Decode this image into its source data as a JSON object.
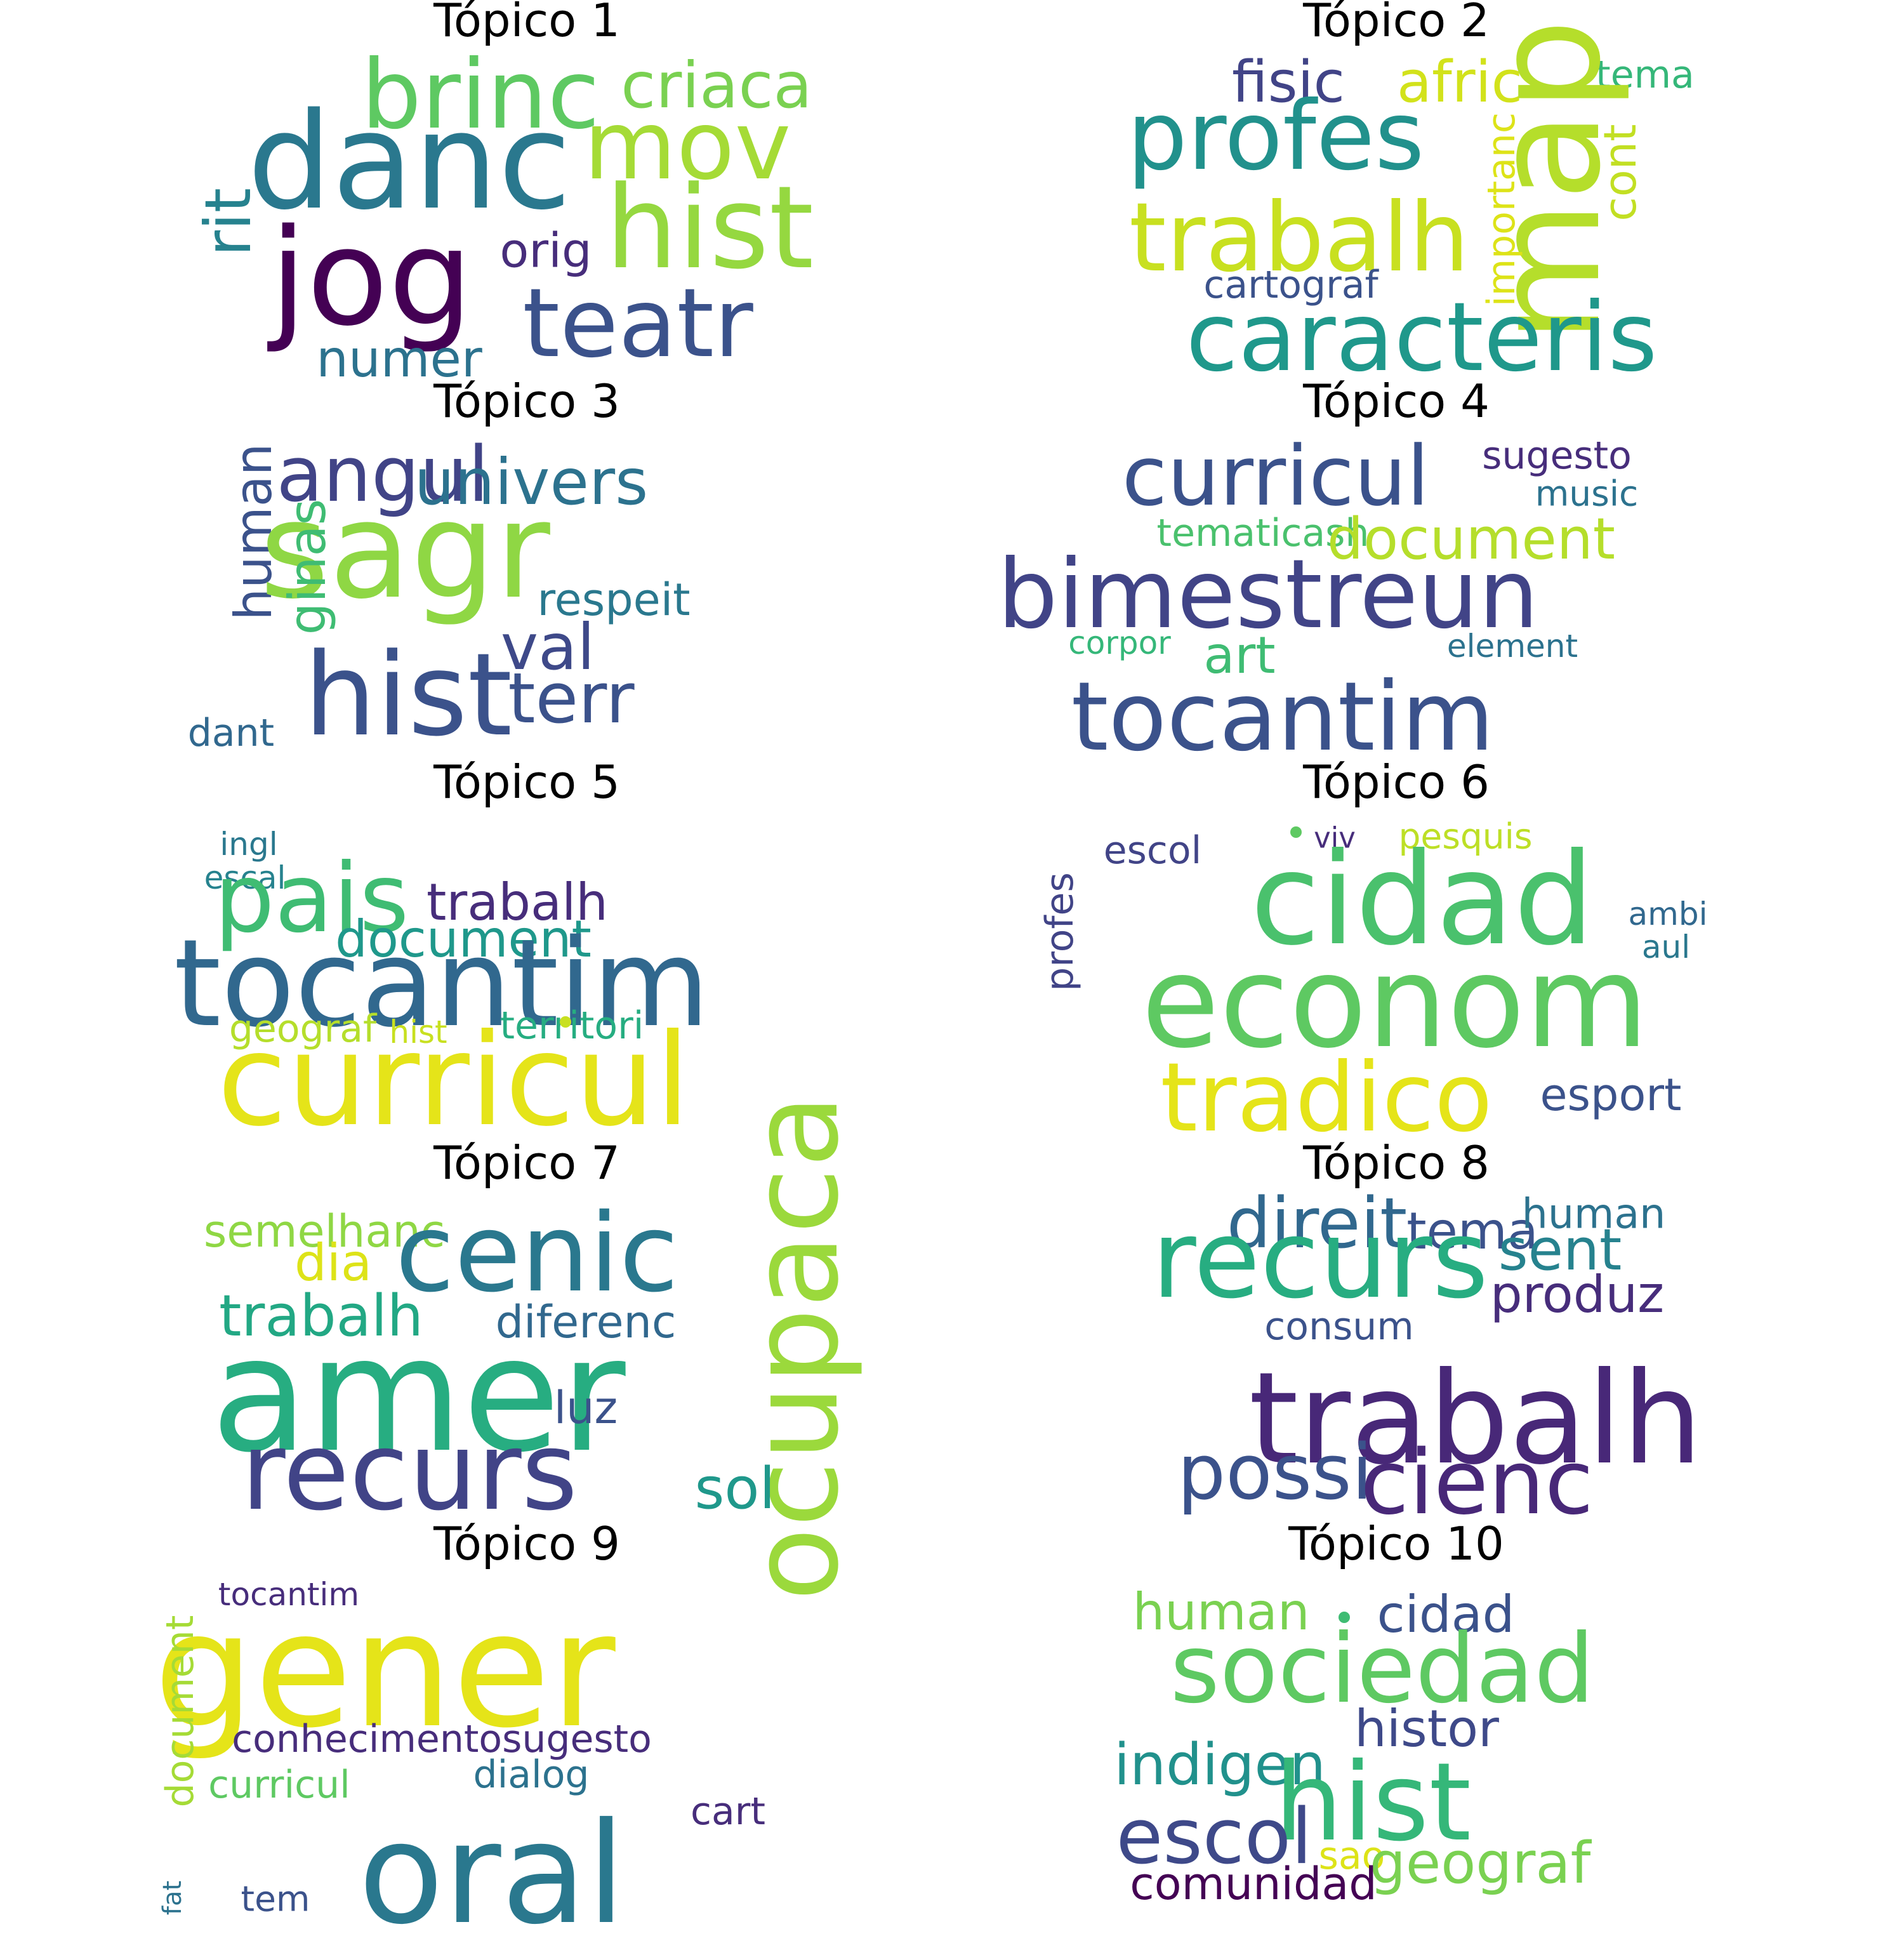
{
  "topics": [
    {
      "title": "Tópico 1",
      "words": [
        {
          "text": "brinc",
          "color": "#5ec962"
        },
        {
          "text": "criaca",
          "color": "#7ad151"
        },
        {
          "text": "danc",
          "color": "#2a788e"
        },
        {
          "text": "mov",
          "color": "#a5db36"
        },
        {
          "text": "rit",
          "color": "#26828e"
        },
        {
          "text": "hist",
          "color": "#95d840"
        },
        {
          "text": "jog",
          "color": "#440154"
        },
        {
          "text": "orig",
          "color": "#472d7b"
        },
        {
          "text": "teatr",
          "color": "#3b528b"
        },
        {
          "text": "numer",
          "color": "#2c728e"
        }
      ],
      "dots": []
    },
    {
      "title": "Tópico 2",
      "words": [
        {
          "text": "fisic",
          "color": "#414487"
        },
        {
          "text": "afric",
          "color": "#d2e21b"
        },
        {
          "text": "tema",
          "color": "#35b779"
        },
        {
          "text": "profes",
          "color": "#21918c"
        },
        {
          "text": "map",
          "color": "#b5de2b"
        },
        {
          "text": "importanc",
          "color": "#dde318"
        },
        {
          "text": "cont",
          "color": "#c2df23"
        },
        {
          "text": "trabalh",
          "color": "#c8e020"
        },
        {
          "text": "cartograf",
          "color": "#3b528b"
        },
        {
          "text": "caracteris",
          "color": "#1f988b"
        }
      ],
      "dots": []
    },
    {
      "title": "Tópico 3",
      "words": [
        {
          "text": "human",
          "color": "#3b528b"
        },
        {
          "text": "angul",
          "color": "#414487"
        },
        {
          "text": "univers",
          "color": "#2c728e"
        },
        {
          "text": "sagr",
          "color": "#8fd744"
        },
        {
          "text": "ginas",
          "color": "#3fbc73"
        },
        {
          "text": "respeit",
          "color": "#2a788e"
        },
        {
          "text": "val",
          "color": "#3e4989"
        },
        {
          "text": "hist",
          "color": "#3b528b"
        },
        {
          "text": "terr",
          "color": "#3b528b"
        },
        {
          "text": "dant",
          "color": "#31688e"
        }
      ],
      "dots": []
    },
    {
      "title": "Tópico 4",
      "words": [
        {
          "text": "curricul",
          "color": "#3b528b"
        },
        {
          "text": "sugesto",
          "color": "#472d7b"
        },
        {
          "text": "music",
          "color": "#2c728e"
        },
        {
          "text": "tematicash",
          "color": "#4ac16d"
        },
        {
          "text": "document",
          "color": "#b5de2b"
        },
        {
          "text": "bimestreun",
          "color": "#414487"
        },
        {
          "text": "art",
          "color": "#3fbc73"
        },
        {
          "text": "corpor",
          "color": "#35b779"
        },
        {
          "text": "element",
          "color": "#2c728e"
        },
        {
          "text": "tocantim",
          "color": "#3b528b"
        }
      ],
      "dots": []
    },
    {
      "title": "Tópico 5",
      "words": [
        {
          "text": "ingl",
          "color": "#2a788e"
        },
        {
          "text": "escal",
          "color": "#26828e"
        },
        {
          "text": "pais",
          "color": "#3fbc73"
        },
        {
          "text": "trabalh",
          "color": "#472d7b"
        },
        {
          "text": "document",
          "color": "#1f988b"
        },
        {
          "text": "tocantim",
          "color": "#31688e"
        },
        {
          "text": "geograf",
          "color": "#b5de2b"
        },
        {
          "text": "hist",
          "color": "#c8e020"
        },
        {
          "text": "territori",
          "color": "#26ad81"
        },
        {
          "text": "curricul",
          "color": "#e5e419"
        }
      ],
      "dots": [
        {
          "color": "#c8e020"
        }
      ]
    },
    {
      "title": "Tópico 6",
      "words": [
        {
          "text": "escol",
          "color": "#414487"
        },
        {
          "text": "viv",
          "color": "#472d7b"
        },
        {
          "text": "pesquis",
          "color": "#bddf26"
        },
        {
          "text": "profes",
          "color": "#414487"
        },
        {
          "text": "cidad",
          "color": "#4ac16d"
        },
        {
          "text": "ambi",
          "color": "#31688e"
        },
        {
          "text": "aul",
          "color": "#2a788e"
        },
        {
          "text": "econom",
          "color": "#5ec962"
        },
        {
          "text": "tradico",
          "color": "#e5e419"
        },
        {
          "text": "esport",
          "color": "#3b528b"
        }
      ],
      "dots": [
        {
          "color": "#5ec962"
        }
      ]
    },
    {
      "title": "Tópico 7",
      "words": [
        {
          "text": "semelhanc",
          "color": "#8fd744"
        },
        {
          "text": "cenic",
          "color": "#2a788e"
        },
        {
          "text": "dia",
          "color": "#dde318"
        },
        {
          "text": "ocupaca",
          "color": "#9bd93c"
        },
        {
          "text": "trabalh",
          "color": "#22a884"
        },
        {
          "text": "diferenc",
          "color": "#31688e"
        },
        {
          "text": "amer",
          "color": "#27ad81"
        },
        {
          "text": "luz",
          "color": "#3b528b"
        },
        {
          "text": "recurs",
          "color": "#414487"
        },
        {
          "text": "sol",
          "color": "#1f988b"
        }
      ],
      "dots": []
    },
    {
      "title": "Tópico 8",
      "words": [
        {
          "text": "direit",
          "color": "#31688e"
        },
        {
          "text": "tema",
          "color": "#3b528b"
        },
        {
          "text": "human",
          "color": "#2c728e"
        },
        {
          "text": "recurs",
          "color": "#27ad81"
        },
        {
          "text": "sent",
          "color": "#26828e"
        },
        {
          "text": "produz",
          "color": "#472d7b"
        },
        {
          "text": "consum",
          "color": "#3b528b"
        },
        {
          "text": "trabalh",
          "color": "#482878"
        },
        {
          "text": "possi",
          "color": "#3b528b"
        },
        {
          "text": "cienc",
          "color": "#482878"
        }
      ],
      "dots": []
    },
    {
      "title": "Tópico 9",
      "words": [
        {
          "text": "tocantim",
          "color": "#472d7b"
        },
        {
          "text": "gener",
          "color": "#e5e419"
        },
        {
          "text": "document",
          "color": "#a5db36"
        },
        {
          "text": "conhecimentosugesto",
          "color": "#472d7b"
        },
        {
          "text": "curricul",
          "color": "#5ec962"
        },
        {
          "text": "dialog",
          "color": "#2c728e"
        },
        {
          "text": "cart",
          "color": "#472d7b"
        },
        {
          "text": "oral",
          "color": "#2a788e"
        },
        {
          "text": "fat",
          "color": "#2c728e"
        },
        {
          "text": "tem",
          "color": "#3b528b"
        }
      ],
      "dots": []
    },
    {
      "title": "Tópico 10",
      "words": [
        {
          "text": "human",
          "color": "#7ad151"
        },
        {
          "text": "cidad",
          "color": "#3b528b"
        },
        {
          "text": "sociedad",
          "color": "#5ec962"
        },
        {
          "text": "histor",
          "color": "#3e4989"
        },
        {
          "text": "indigen",
          "color": "#21918c"
        },
        {
          "text": "hist",
          "color": "#35b779"
        },
        {
          "text": "escol",
          "color": "#3e4989"
        },
        {
          "text": "sao",
          "color": "#dde318"
        },
        {
          "text": "geograf",
          "color": "#7ad151"
        },
        {
          "text": "comunidad",
          "color": "#440154"
        }
      ],
      "dots": [
        {
          "color": "#3fbc73"
        }
      ]
    }
  ]
}
